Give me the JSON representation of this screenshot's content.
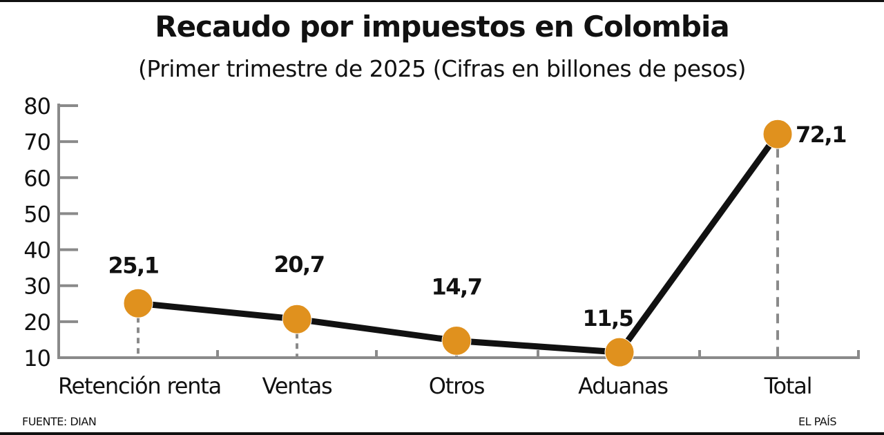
{
  "header": {
    "title": "Recaudo por impuestos en Colombia",
    "subtitle": "(Primer trimestre de 2025 (Cifras en billones de pesos)"
  },
  "footer": {
    "source": "FUENTE: DIAN",
    "brand": "EL PAÍS"
  },
  "chart_data": {
    "type": "line",
    "title": "Recaudo por impuestos en Colombia",
    "subtitle": "(Primer trimestre de 2025 (Cifras en billones de pesos)",
    "categories": [
      "Retención renta",
      "Ventas",
      "Otros",
      "Aduanas",
      "Total"
    ],
    "values": [
      25.1,
      20.7,
      14.7,
      11.5,
      72.1
    ],
    "data_labels": [
      "25,1",
      "20,7",
      "14,7",
      "11,5",
      "72,1"
    ],
    "yticks": [
      "10",
      "20",
      "30",
      "40",
      "50",
      "60",
      "70",
      "80"
    ],
    "ylim": [
      10,
      80
    ],
    "grid": false,
    "colors": {
      "marker": "#E0911E",
      "line": "#111111",
      "axis": "#8a8a8a"
    }
  }
}
